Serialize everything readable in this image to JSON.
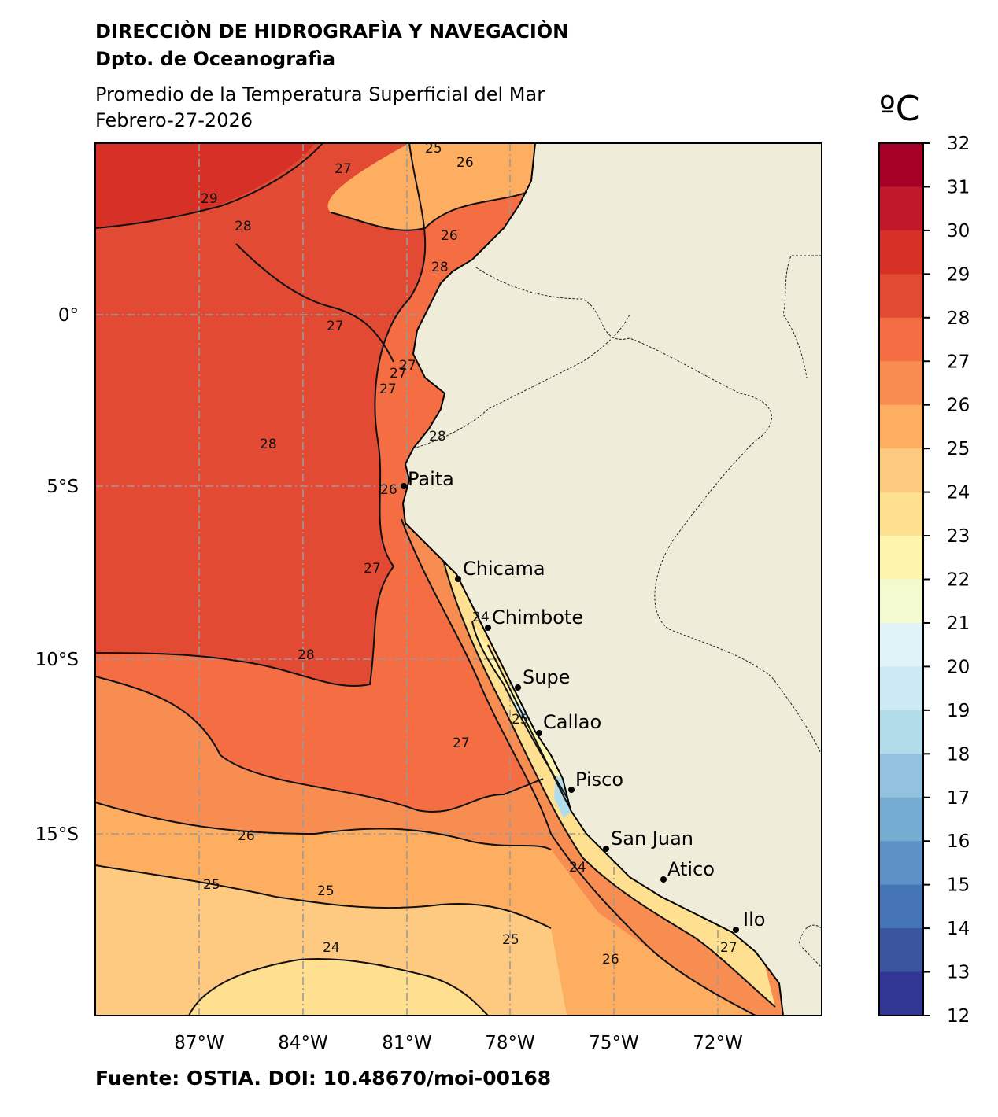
{
  "header": {
    "institution": "DIRECCIÒN DE HIDROGRAFÌA Y NAVEGACIÒN",
    "department": "Dpto. de Oceanografìa",
    "title": "Promedio de la Temperatura Superficial del Mar",
    "date": "Febrero-27-2026"
  },
  "colorbar": {
    "unit": "ºC",
    "ticks": [
      "32",
      "31",
      "30",
      "29",
      "28",
      "27",
      "26",
      "25",
      "24",
      "23",
      "22",
      "21",
      "20",
      "19",
      "18",
      "17",
      "16",
      "15",
      "14",
      "13",
      "12"
    ],
    "colors": [
      "#a50026",
      "#c0192a",
      "#d73027",
      "#e34a33",
      "#f46d43",
      "#f88d52",
      "#fdae61",
      "#fec980",
      "#fee090",
      "#fff4ac",
      "#f3fad0",
      "#e0f3f8",
      "#cde9f3",
      "#b3dcea",
      "#93c2de",
      "#74add1",
      "#5e92c6",
      "#4575b4",
      "#3b559f",
      "#313695"
    ]
  },
  "axes": {
    "x_ticks": [
      "87°W",
      "84°W",
      "81°W",
      "78°W",
      "75°W",
      "72°W"
    ],
    "y_ticks": [
      "0°",
      "5°S",
      "10°S",
      "15°S"
    ]
  },
  "map": {
    "land_color": "#efedda",
    "cities": [
      "Paita",
      "Chicama",
      "Chimbote",
      "Supe",
      "Callao",
      "Pisco",
      "San Juan",
      "Atico",
      "Ilo"
    ],
    "contour_labels": [
      "29",
      "28",
      "27",
      "27",
      "26",
      "25",
      "26",
      "28",
      "28",
      "27",
      "27",
      "27",
      "28",
      "26",
      "27",
      "28",
      "27",
      "26",
      "25",
      "25",
      "24",
      "24",
      "25",
      "26",
      "24",
      "27",
      "25"
    ]
  },
  "footer": {
    "source": "Fuente: OSTIA. DOI: 10.48670/moi-00168"
  }
}
